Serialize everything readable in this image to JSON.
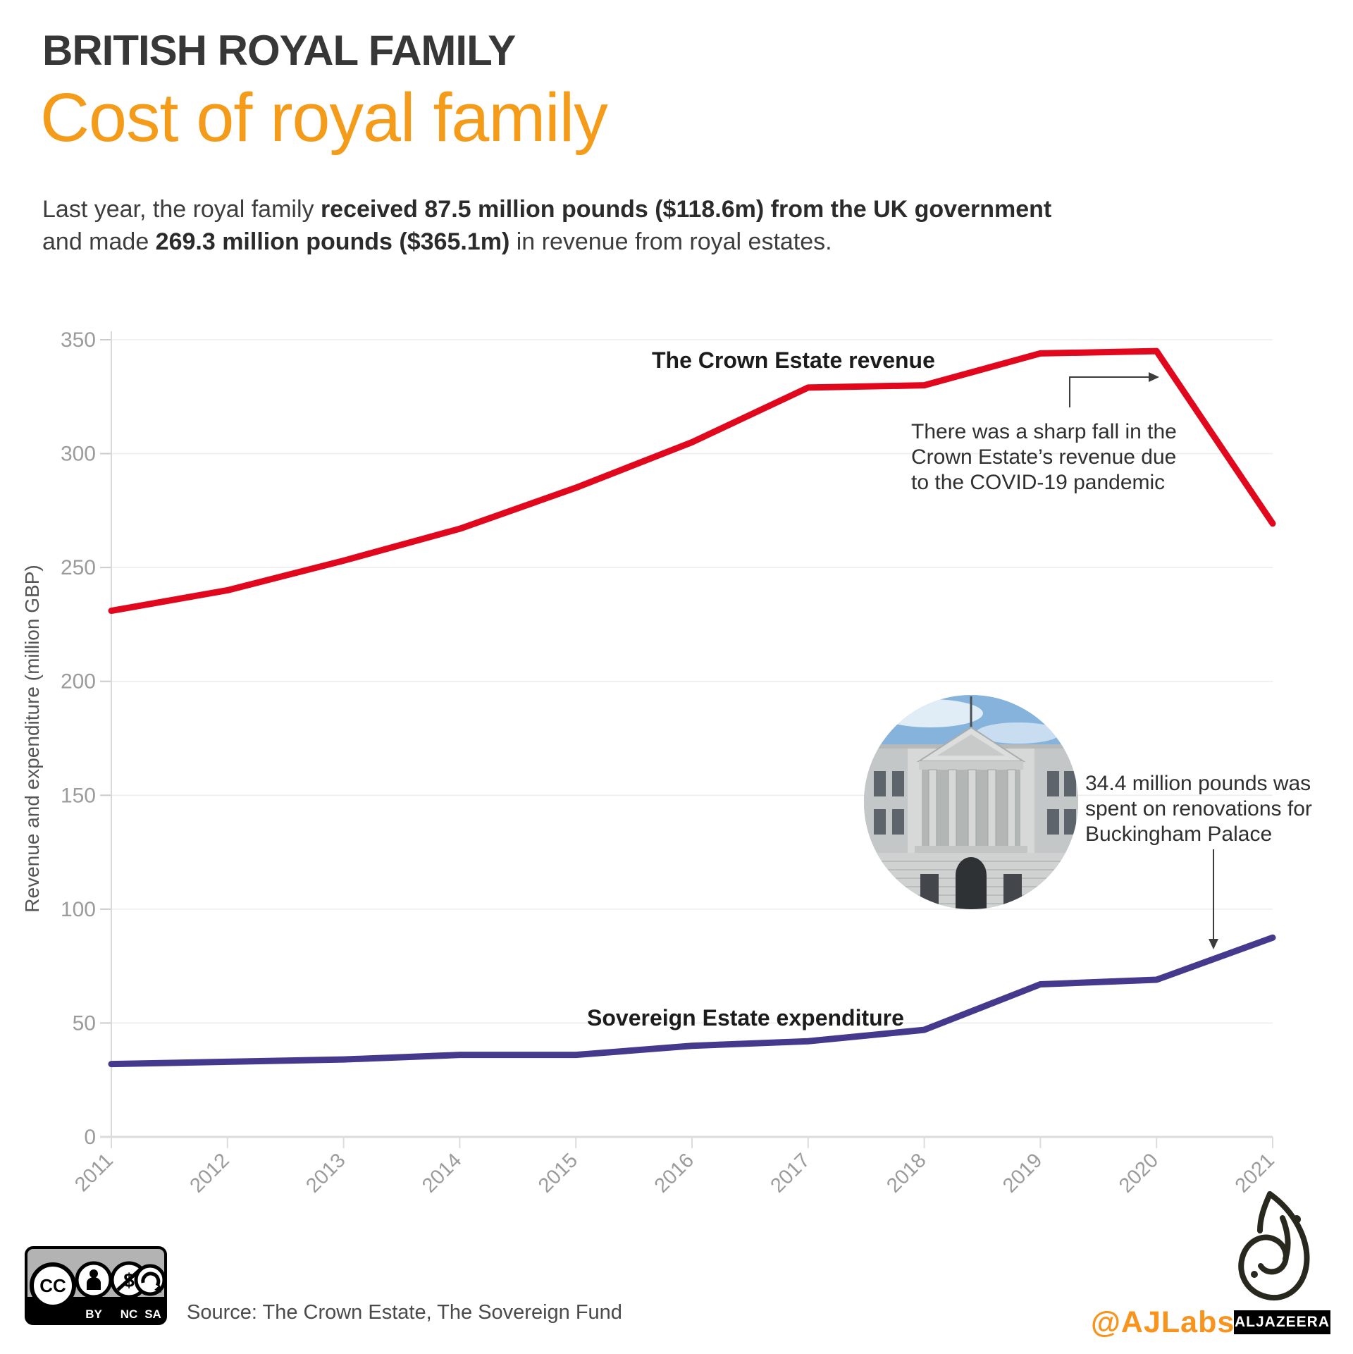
{
  "header": {
    "kicker": "BRITISH ROYAL FAMILY",
    "title": "Cost of royal family",
    "intro_segments": [
      {
        "text": "Last year, the royal family ",
        "bold": false
      },
      {
        "text": "received 87.5 million pounds ($118.6m) from the UK government",
        "bold": true
      },
      {
        "text": " and made ",
        "bold": false
      },
      {
        "text": "269.3 million pounds ($365.1m)",
        "bold": true
      },
      {
        "text": " in revenue from royal estates.",
        "bold": false
      }
    ]
  },
  "colors": {
    "accent_orange": "#f49b1a",
    "revenue_red": "#e1071c",
    "expenditure_blue": "#44398d",
    "axis_text_gray": "#9b9b9b",
    "annotation_black": "#2f2f2f"
  },
  "chart_data": {
    "type": "line",
    "title": "Cost of royal family",
    "x": [
      "2011",
      "2012",
      "2013",
      "2014",
      "2015",
      "2016",
      "2017",
      "2018",
      "2019",
      "2020",
      "2021"
    ],
    "series": [
      {
        "name": "The Crown Estate revenue",
        "color": "#e1071c",
        "values": [
          231,
          240,
          253,
          267,
          285,
          305,
          329,
          330,
          344,
          345,
          269.3
        ]
      },
      {
        "name": "Sovereign Estate expenditure",
        "color": "#44398d",
        "values": [
          32,
          33,
          34,
          36,
          36,
          40,
          42,
          47,
          67,
          69,
          87.5
        ]
      }
    ],
    "ylabel": "Revenue and expenditure (million GBP)",
    "ylim": [
      0,
      350
    ],
    "yticks": [
      0,
      50,
      100,
      150,
      200,
      250,
      300,
      350
    ],
    "grid": "horizontal",
    "legend_position": "inline-labels",
    "annotations": [
      {
        "id": "covid",
        "lines": [
          "There was a sharp fall in the",
          "Crown Estate’s revenue due",
          "to the COVID-19 pandemic"
        ],
        "arrow": "elbow-right"
      },
      {
        "id": "palace",
        "lines": [
          "34.4 million pounds was",
          "spent on renovations for",
          "Buckingham Palace"
        ],
        "arrow": "down"
      }
    ]
  },
  "footer": {
    "license": {
      "cc_label": "CC",
      "labels": [
        "BY",
        "NC",
        "SA"
      ]
    },
    "source": "Source: The Crown Estate, The Sovereign Fund",
    "social": "@AJLabs",
    "brand": "ALJAZEERA"
  }
}
